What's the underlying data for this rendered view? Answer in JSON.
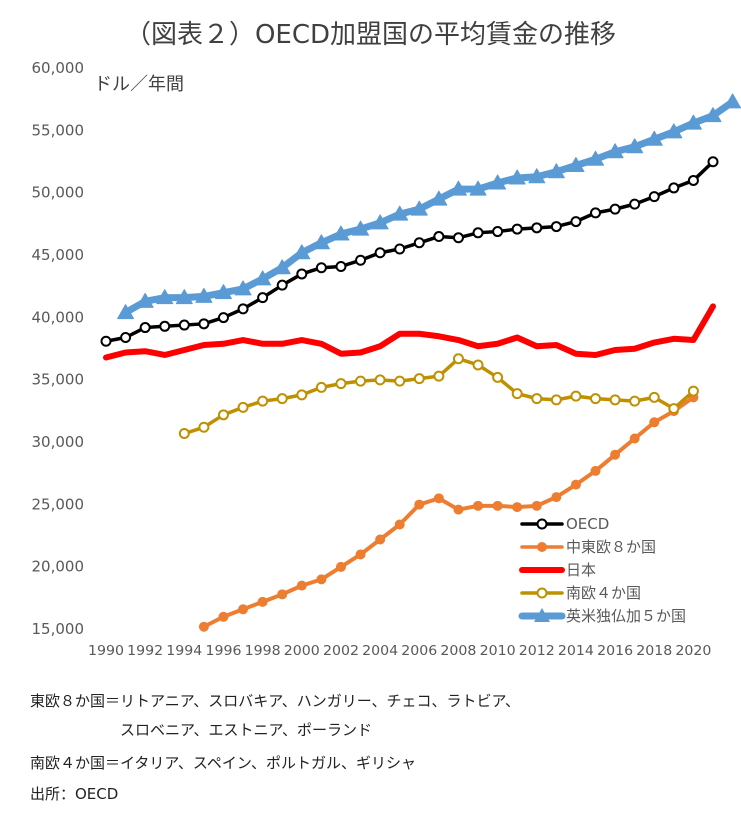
{
  "chart_data": {
    "type": "line",
    "title": "（図表２）OECD加盟国の平均賃金の推移",
    "unit_label": "ドル／年間",
    "ylim": [
      15000,
      60000
    ],
    "y_ticks": [
      "15,000",
      "20,000",
      "25,000",
      "30,000",
      "35,000",
      "40,000",
      "45,000",
      "50,000",
      "55,000",
      "60,000"
    ],
    "x_tick_labels": [
      "1990",
      "1992",
      "1994",
      "1996",
      "1998",
      "2000",
      "2002",
      "2004",
      "2006",
      "2008",
      "2010",
      "2012",
      "2014",
      "2016",
      "2018",
      "2020"
    ],
    "legend_position": "bottom-right",
    "series": [
      {
        "name": "OECD",
        "color": "#000000",
        "marker": "open-circle",
        "start_year": 1990,
        "values": [
          38000,
          38300,
          39100,
          39200,
          39300,
          39400,
          39900,
          40600,
          41500,
          42500,
          43400,
          43900,
          44000,
          44500,
          45100,
          45400,
          45900,
          46400,
          46300,
          46700,
          46800,
          47000,
          47100,
          47200,
          47600,
          48300,
          48600,
          49000,
          49600,
          50300,
          50900,
          52400
        ]
      },
      {
        "name": "中東欧８か国",
        "color": "#ED7D31",
        "marker": "filled-circle",
        "start_year": 1995,
        "values": [
          15100,
          15900,
          16500,
          17100,
          17700,
          18400,
          18900,
          19900,
          20900,
          22100,
          23300,
          24900,
          25400,
          24500,
          24800,
          24800,
          24700,
          24800,
          25500,
          26500,
          27600,
          28900,
          30200,
          31500,
          32400,
          33500
        ]
      },
      {
        "name": "日本",
        "color": "#FF0000",
        "marker": "none",
        "start_year": 1990,
        "values": [
          36700,
          37100,
          37200,
          36900,
          37300,
          37700,
          37800,
          38100,
          37800,
          37800,
          38100,
          37800,
          37000,
          37100,
          37600,
          38600,
          38600,
          38400,
          38100,
          37600,
          37800,
          38300,
          37600,
          37700,
          37000,
          36900,
          37300,
          37400,
          37900,
          38200,
          38100,
          40800
        ]
      },
      {
        "name": "南欧４か国",
        "color": "#BF9000",
        "marker": "open-circle",
        "start_year": 1994,
        "values": [
          30600,
          31100,
          32100,
          32700,
          33200,
          33400,
          33700,
          34300,
          34600,
          34800,
          34900,
          34800,
          35000,
          35200,
          36600,
          36100,
          35100,
          33800,
          33400,
          33300,
          33600,
          33400,
          33300,
          33200,
          33500,
          32600,
          34000
        ]
      },
      {
        "name": "英米独仏加５か国",
        "color": "#5B9BD5",
        "marker": "triangle",
        "start_year": 1991,
        "values": [
          40300,
          41200,
          41500,
          41500,
          41600,
          41900,
          42200,
          43000,
          43900,
          45100,
          45900,
          46600,
          47000,
          47500,
          48200,
          48600,
          49400,
          50200,
          50200,
          50700,
          51100,
          51200,
          51600,
          52100,
          52600,
          53200,
          53600,
          54200,
          54800,
          55500,
          56100,
          57200
        ]
      }
    ]
  },
  "notes": {
    "line1": "東欧８か国＝リトアニア、スロバキア、ハンガリー、チェコ、ラトビア、",
    "line2": "スロベニア、エストニア、ポーランド",
    "line3": "南欧４か国＝イタリア、スペイン、ポルトガル、ギリシャ",
    "source": "出所：OECD"
  }
}
